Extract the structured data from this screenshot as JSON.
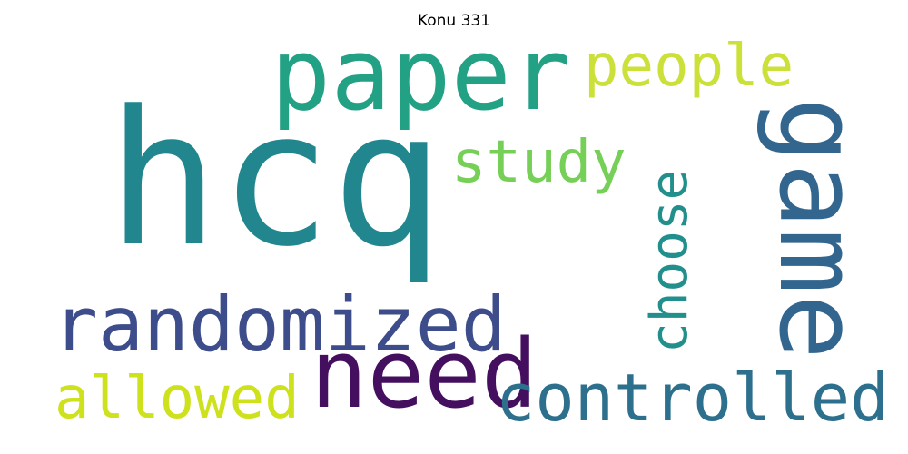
{
  "title": "Konu 331",
  "words": [
    {
      "text": "hcq",
      "color": "#21868d"
    },
    {
      "text": "paper",
      "color": "#23a184"
    },
    {
      "text": "people",
      "color": "#cce03a"
    },
    {
      "text": "study",
      "color": "#76cf56"
    },
    {
      "text": "game",
      "color": "#33668f"
    },
    {
      "text": "choose",
      "color": "#218f8c"
    },
    {
      "text": "randomized",
      "color": "#3d4c8a"
    },
    {
      "text": "need",
      "color": "#440f5e"
    },
    {
      "text": "allowed",
      "color": "#cde11d"
    },
    {
      "text": "controlled",
      "color": "#2d708e"
    }
  ]
}
